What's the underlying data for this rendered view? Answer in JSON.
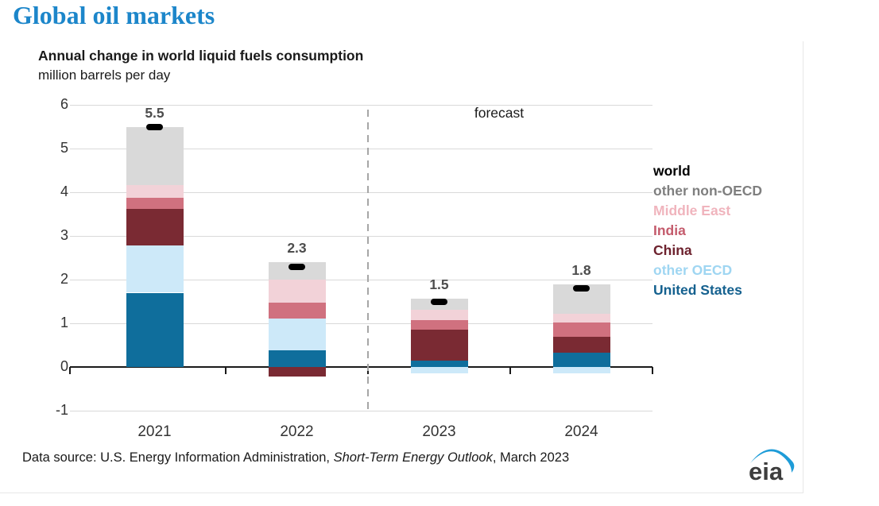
{
  "page": {
    "title": "Global oil markets",
    "title_color": "#1c86ca"
  },
  "chart": {
    "title": "Annual change in world liquid fuels consumption",
    "subtitle": "million barrels per day",
    "forecast_label": "forecast"
  },
  "chart_data": {
    "type": "bar",
    "stacked": true,
    "title": "Annual change in world liquid fuels consumption",
    "ylabel": "million barrels per day",
    "categories": [
      "2021",
      "2022",
      "2023",
      "2024"
    ],
    "series": [
      {
        "name": "United States",
        "color": "#0f6e9c",
        "values": [
          1.7,
          0.38,
          0.14,
          0.33
        ]
      },
      {
        "name": "other OECD",
        "color": "#cde9f9",
        "values": [
          1.09,
          0.73,
          -0.14,
          -0.14
        ]
      },
      {
        "name": "China",
        "color": "#7a2a33",
        "values": [
          0.82,
          -0.21,
          0.71,
          0.36
        ]
      },
      {
        "name": "India",
        "color": "#d0717f",
        "values": [
          0.27,
          0.36,
          0.22,
          0.32
        ]
      },
      {
        "name": "Middle East",
        "color": "#f2d2d8",
        "values": [
          0.29,
          0.53,
          0.24,
          0.2
        ]
      },
      {
        "name": "other non-OECD",
        "color": "#d9d9d9",
        "values": [
          1.33,
          0.4,
          0.25,
          0.68
        ]
      }
    ],
    "world_markers": {
      "name": "world",
      "color": "#000000",
      "values": [
        5.5,
        2.3,
        1.5,
        1.8
      ]
    },
    "bar_total_labels": [
      "5.5",
      "2.3",
      "1.5",
      "1.8"
    ],
    "ylim": [
      -1,
      6
    ],
    "yticks": [
      6,
      5,
      4,
      3,
      2,
      1,
      0,
      -1
    ],
    "forecast_divider_between": [
      "2022",
      "2023"
    ],
    "grid": true,
    "legend_position": "right",
    "legend": [
      {
        "label": "world",
        "color": "#000000"
      },
      {
        "label": "other non-OECD",
        "color": "#7f7f7f"
      },
      {
        "label": "Middle East",
        "color": "#f0b4bd"
      },
      {
        "label": "India",
        "color": "#c45b6c"
      },
      {
        "label": "China",
        "color": "#6d222e"
      },
      {
        "label": "other OECD",
        "color": "#9fd6f2"
      },
      {
        "label": "United States",
        "color": "#15618f"
      }
    ]
  },
  "footer": {
    "text_prefix": "Data source: U.S. Energy Information Administration, ",
    "text_italic": "Short-Term Energy Outlook",
    "text_suffix": ", March 2023",
    "logo_text": "eia"
  }
}
